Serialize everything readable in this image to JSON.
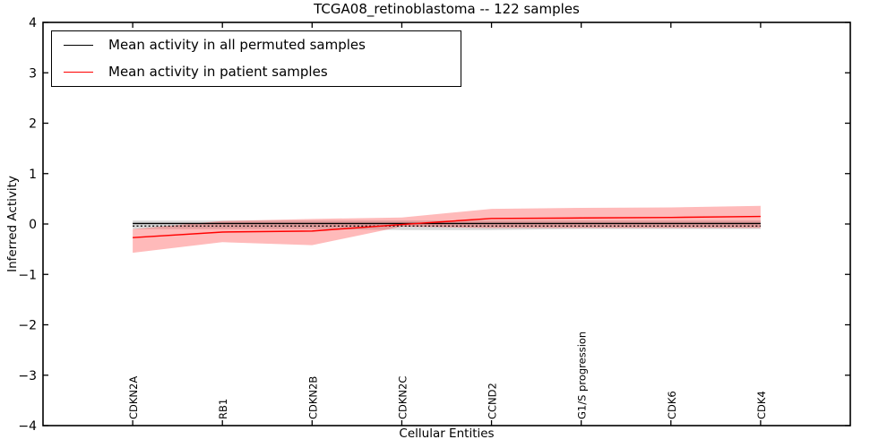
{
  "title": "TCGA08_retinoblastoma -- 122 samples",
  "legend": {
    "items": [
      {
        "label": "Mean activity in all permuted samples",
        "color": "#000000"
      },
      {
        "label": "Mean activity in patient samples",
        "color": "#ff0000"
      }
    ],
    "position": "upper left"
  },
  "chart_data": {
    "type": "line",
    "title": "TCGA08_retinoblastoma -- 122 samples",
    "xlabel": "Cellular Entities",
    "ylabel": "Inferred Activity",
    "ylim": [
      -4,
      4
    ],
    "xlim_units": [
      -1,
      8
    ],
    "yticks": [
      4,
      3,
      2,
      1,
      0,
      -1,
      -2,
      -3,
      -4
    ],
    "ytick_labels": [
      "4",
      "3",
      "2",
      "1",
      "0",
      "−1",
      "−2",
      "−3",
      "−4"
    ],
    "categories": [
      "CDKN2A",
      "RB1",
      "CDKN2B",
      "CDKN2C",
      "CCND2",
      "G1/S progression",
      "CDK6",
      "CDK4"
    ],
    "grid": false,
    "legend_position": "upper left",
    "series": [
      {
        "name": "Mean activity in all permuted samples",
        "color": "#000000",
        "line_width": 1.3,
        "values": [
          0.01,
          0.01,
          0.01,
          0.01,
          0.01,
          0.01,
          0.01,
          0.01
        ],
        "band": {
          "color": "rgba(0,0,0,0.15)",
          "top": [
            0.07,
            0.07,
            0.07,
            0.07,
            0.07,
            0.07,
            0.07,
            0.07
          ],
          "bottom": [
            -0.1,
            -0.1,
            -0.1,
            -0.12,
            -0.12,
            -0.1,
            -0.1,
            -0.1
          ]
        }
      },
      {
        "name": "Mean activity in patient samples",
        "color": "#ff0000",
        "line_width": 1.5,
        "values": [
          -0.27,
          -0.16,
          -0.14,
          -0.01,
          0.11,
          0.12,
          0.13,
          0.15
        ],
        "band": {
          "color": "rgba(255,0,0,0.27)",
          "top": [
            -0.1,
            0.06,
            0.1,
            0.13,
            0.3,
            0.32,
            0.33,
            0.36
          ],
          "bottom": [
            -0.57,
            -0.36,
            -0.42,
            -0.05,
            -0.08,
            -0.08,
            -0.08,
            -0.08
          ]
        }
      }
    ],
    "reference_line": {
      "value": -0.04,
      "color": "#000000",
      "style": "dotted"
    }
  }
}
